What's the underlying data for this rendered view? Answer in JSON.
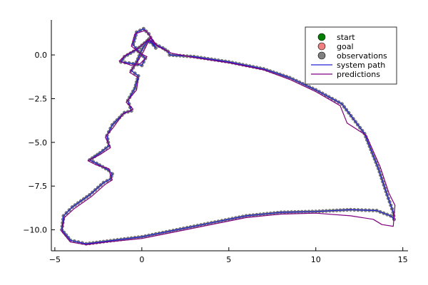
{
  "chart_data": {
    "type": "line",
    "title": "",
    "xlabel": "",
    "ylabel": "",
    "xlim": [
      -5.2,
      15.3
    ],
    "ylim": [
      -11.2,
      2.0
    ],
    "grid": false,
    "legend_position": "top-right",
    "x_ticks": [
      {
        "value": -5,
        "label": "−5"
      },
      {
        "value": 0,
        "label": "0"
      },
      {
        "value": 5,
        "label": "5"
      },
      {
        "value": 10,
        "label": "10"
      },
      {
        "value": 15,
        "label": "15"
      }
    ],
    "y_ticks": [
      {
        "value": 0,
        "label": "0.0"
      },
      {
        "value": -2.5,
        "label": "−2.5"
      },
      {
        "value": -5,
        "label": "−5.0"
      },
      {
        "value": -7.5,
        "label": "−7.5"
      },
      {
        "value": -10,
        "label": "−10.0"
      }
    ],
    "legend": [
      {
        "label": "start",
        "kind": "marker",
        "color": "#008000"
      },
      {
        "label": "goal",
        "kind": "marker",
        "color": "#f08080"
      },
      {
        "label": "observations",
        "kind": "marker",
        "color": "#808080"
      },
      {
        "label": "system path",
        "kind": "line",
        "color": "#2020d0"
      },
      {
        "label": "predictions",
        "kind": "line",
        "color": "#800080"
      }
    ],
    "series": [
      {
        "name": "system path",
        "color": "#2020d0",
        "x": [
          1.6,
          3.0,
          5.0,
          7.0,
          8.5,
          10.0,
          11.5,
          12.8,
          13.6,
          14.1,
          14.45,
          14.5,
          14.3,
          13.5,
          12.0,
          10.0,
          8.0,
          6.0,
          4.0,
          2.0,
          0.0,
          -2.0,
          -3.2,
          -4.1,
          -4.6,
          -4.5,
          -4.0,
          -3.0,
          -2.2,
          -1.8,
          -1.7,
          -1.9,
          -2.6,
          -3.0,
          -2.4,
          -1.9,
          -2.0,
          -1.7,
          -1.0,
          -0.6,
          -0.8,
          -0.4,
          -0.2,
          -0.6,
          -0.3,
          0.0,
          0.4,
          0.8,
          0.4,
          0.1,
          -0.3,
          -0.5,
          -0.2,
          0.2,
          0.0,
          -0.5,
          -1.2,
          -1.0,
          -0.3,
          0.3,
          0.8,
          1.2,
          1.5,
          1.6
        ],
        "y": [
          0.0,
          -0.1,
          -0.4,
          -0.8,
          -1.3,
          -2.0,
          -2.8,
          -4.5,
          -6.5,
          -8.0,
          -9.0,
          -9.4,
          -9.2,
          -8.9,
          -8.85,
          -8.95,
          -9.0,
          -9.2,
          -9.6,
          -10.0,
          -10.4,
          -10.65,
          -10.8,
          -10.6,
          -10.0,
          -9.2,
          -8.7,
          -8.0,
          -7.3,
          -7.1,
          -6.8,
          -6.6,
          -6.2,
          -6.0,
          -5.6,
          -5.2,
          -4.6,
          -4.0,
          -3.3,
          -3.2,
          -2.6,
          -1.9,
          -1.2,
          -0.9,
          -0.4,
          0.3,
          0.9,
          0.4,
          1.2,
          1.5,
          1.3,
          0.6,
          0.2,
          -0.2,
          -0.6,
          -0.5,
          -0.4,
          -0.1,
          0.3,
          0.8,
          0.6,
          0.4,
          0.2,
          0.0
        ]
      },
      {
        "name": "predictions",
        "color": "#800080",
        "x": [
          1.7,
          3.0,
          5.0,
          7.0,
          8.5,
          10.0,
          11.4,
          11.8,
          12.9,
          13.7,
          14.2,
          14.55,
          14.45,
          13.8,
          13.3,
          12.0,
          10.0,
          8.0,
          6.0,
          4.0,
          2.0,
          0.0,
          -2.0,
          -3.2,
          -4.1,
          -4.6,
          -4.45,
          -3.9,
          -2.9,
          -2.1,
          -1.7,
          -1.8,
          -1.9,
          -2.6,
          -3.1,
          -2.4,
          -1.8,
          -2.1,
          -1.6,
          -1.1,
          -0.5,
          -0.9,
          -0.3,
          -0.2,
          -0.7,
          -0.2,
          0.1,
          0.5,
          0.9,
          0.3,
          0.2,
          -0.4,
          -0.6,
          -0.1,
          0.3,
          -0.1,
          -0.6,
          -1.3,
          -0.9,
          -0.2,
          0.4,
          0.9,
          1.3,
          1.5,
          1.7
        ],
        "y": [
          0.1,
          -0.15,
          -0.45,
          -0.85,
          -1.4,
          -2.1,
          -2.9,
          -3.9,
          -4.6,
          -6.4,
          -7.9,
          -8.6,
          -9.8,
          -9.7,
          -9.4,
          -9.2,
          -9.05,
          -9.1,
          -9.3,
          -9.7,
          -10.1,
          -10.5,
          -10.7,
          -10.85,
          -10.7,
          -10.1,
          -9.3,
          -8.8,
          -8.1,
          -7.4,
          -7.15,
          -6.9,
          -6.5,
          -6.3,
          -6.05,
          -5.7,
          -5.3,
          -4.7,
          -4.1,
          -3.4,
          -3.1,
          -2.7,
          -2.0,
          -1.3,
          -1.0,
          -0.3,
          0.2,
          1.0,
          0.5,
          1.3,
          1.4,
          1.2,
          0.5,
          0.1,
          -0.1,
          -0.5,
          -0.6,
          -0.35,
          0.0,
          0.4,
          0.9,
          0.5,
          0.3,
          0.2,
          0.1
        ]
      }
    ]
  }
}
